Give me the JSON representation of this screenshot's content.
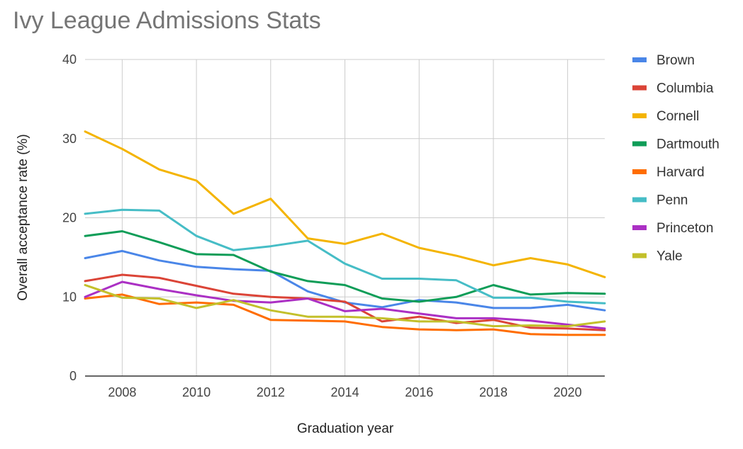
{
  "chart_data": {
    "type": "line",
    "title": "Ivy League Admissions Stats",
    "xlabel": "Graduation year",
    "ylabel": "Overall acceptance rate (%)",
    "xlim": [
      2007,
      2021
    ],
    "ylim": [
      0,
      40
    ],
    "xticks": [
      2008,
      2010,
      2012,
      2014,
      2016,
      2018,
      2020
    ],
    "yticks": [
      0,
      10,
      20,
      30,
      40
    ],
    "grid": true,
    "legend_position": "right",
    "x": [
      2007,
      2008,
      2009,
      2010,
      2011,
      2012,
      2013,
      2014,
      2015,
      2016,
      2017,
      2018,
      2019,
      2020,
      2021
    ],
    "series": [
      {
        "name": "Brown",
        "color": "#4a86e8",
        "values": [
          14.9,
          15.8,
          14.6,
          13.8,
          13.5,
          13.3,
          10.7,
          9.3,
          8.7,
          9.6,
          9.3,
          8.6,
          8.6,
          9.0,
          8.3
        ]
      },
      {
        "name": "Columbia",
        "color": "#db4437",
        "values": [
          12.0,
          12.8,
          12.4,
          11.4,
          10.4,
          10.0,
          9.8,
          9.4,
          6.9,
          7.5,
          6.7,
          7.1,
          6.1,
          6.0,
          5.8
        ]
      },
      {
        "name": "Cornell",
        "color": "#f4b400",
        "values": [
          30.9,
          28.7,
          26.1,
          24.7,
          20.5,
          22.4,
          17.4,
          16.7,
          18.0,
          16.2,
          15.2,
          14.0,
          14.9,
          14.1,
          12.5
        ]
      },
      {
        "name": "Dartmouth",
        "color": "#0f9d58",
        "values": [
          17.7,
          18.3,
          16.9,
          15.4,
          15.3,
          13.2,
          12.0,
          11.5,
          9.8,
          9.4,
          10.0,
          11.5,
          10.3,
          10.5,
          10.4
        ]
      },
      {
        "name": "Harvard",
        "color": "#ff6d00",
        "values": [
          9.8,
          10.3,
          9.1,
          9.3,
          9.0,
          7.1,
          7.0,
          6.9,
          6.2,
          5.9,
          5.8,
          5.9,
          5.3,
          5.2,
          5.2
        ]
      },
      {
        "name": "Penn",
        "color": "#46bdc6",
        "values": [
          20.5,
          21.0,
          20.9,
          17.7,
          15.9,
          16.4,
          17.1,
          14.2,
          12.3,
          12.3,
          12.1,
          9.9,
          9.9,
          9.4,
          9.2
        ]
      },
      {
        "name": "Princeton",
        "color": "#ab30c4",
        "values": [
          10.0,
          11.9,
          11.0,
          10.2,
          9.5,
          9.3,
          9.8,
          8.2,
          8.5,
          7.9,
          7.3,
          7.3,
          7.0,
          6.5,
          6.0
        ]
      },
      {
        "name": "Yale",
        "color": "#c3c02b",
        "values": [
          11.5,
          9.9,
          9.8,
          8.6,
          9.6,
          8.3,
          7.5,
          7.5,
          7.3,
          6.9,
          6.9,
          6.3,
          6.4,
          6.3,
          6.9
        ]
      }
    ]
  }
}
